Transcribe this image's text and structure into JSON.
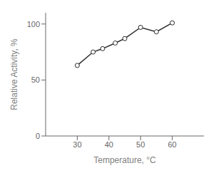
{
  "chart_data": {
    "type": "line",
    "x": [
      30,
      35,
      38,
      42,
      45,
      50,
      55,
      60
    ],
    "values": [
      63,
      75,
      78,
      83,
      87,
      97,
      93,
      101
    ],
    "xlim": [
      20,
      70
    ],
    "ylim": [
      0,
      110
    ],
    "xticks": [
      30,
      40,
      50,
      60
    ],
    "yticks": [
      0,
      50,
      100
    ],
    "xlabel": "Temperature,  °C",
    "ylabel": "Relative Activity, %",
    "color": "#2a2a2a",
    "marker": "circle"
  }
}
